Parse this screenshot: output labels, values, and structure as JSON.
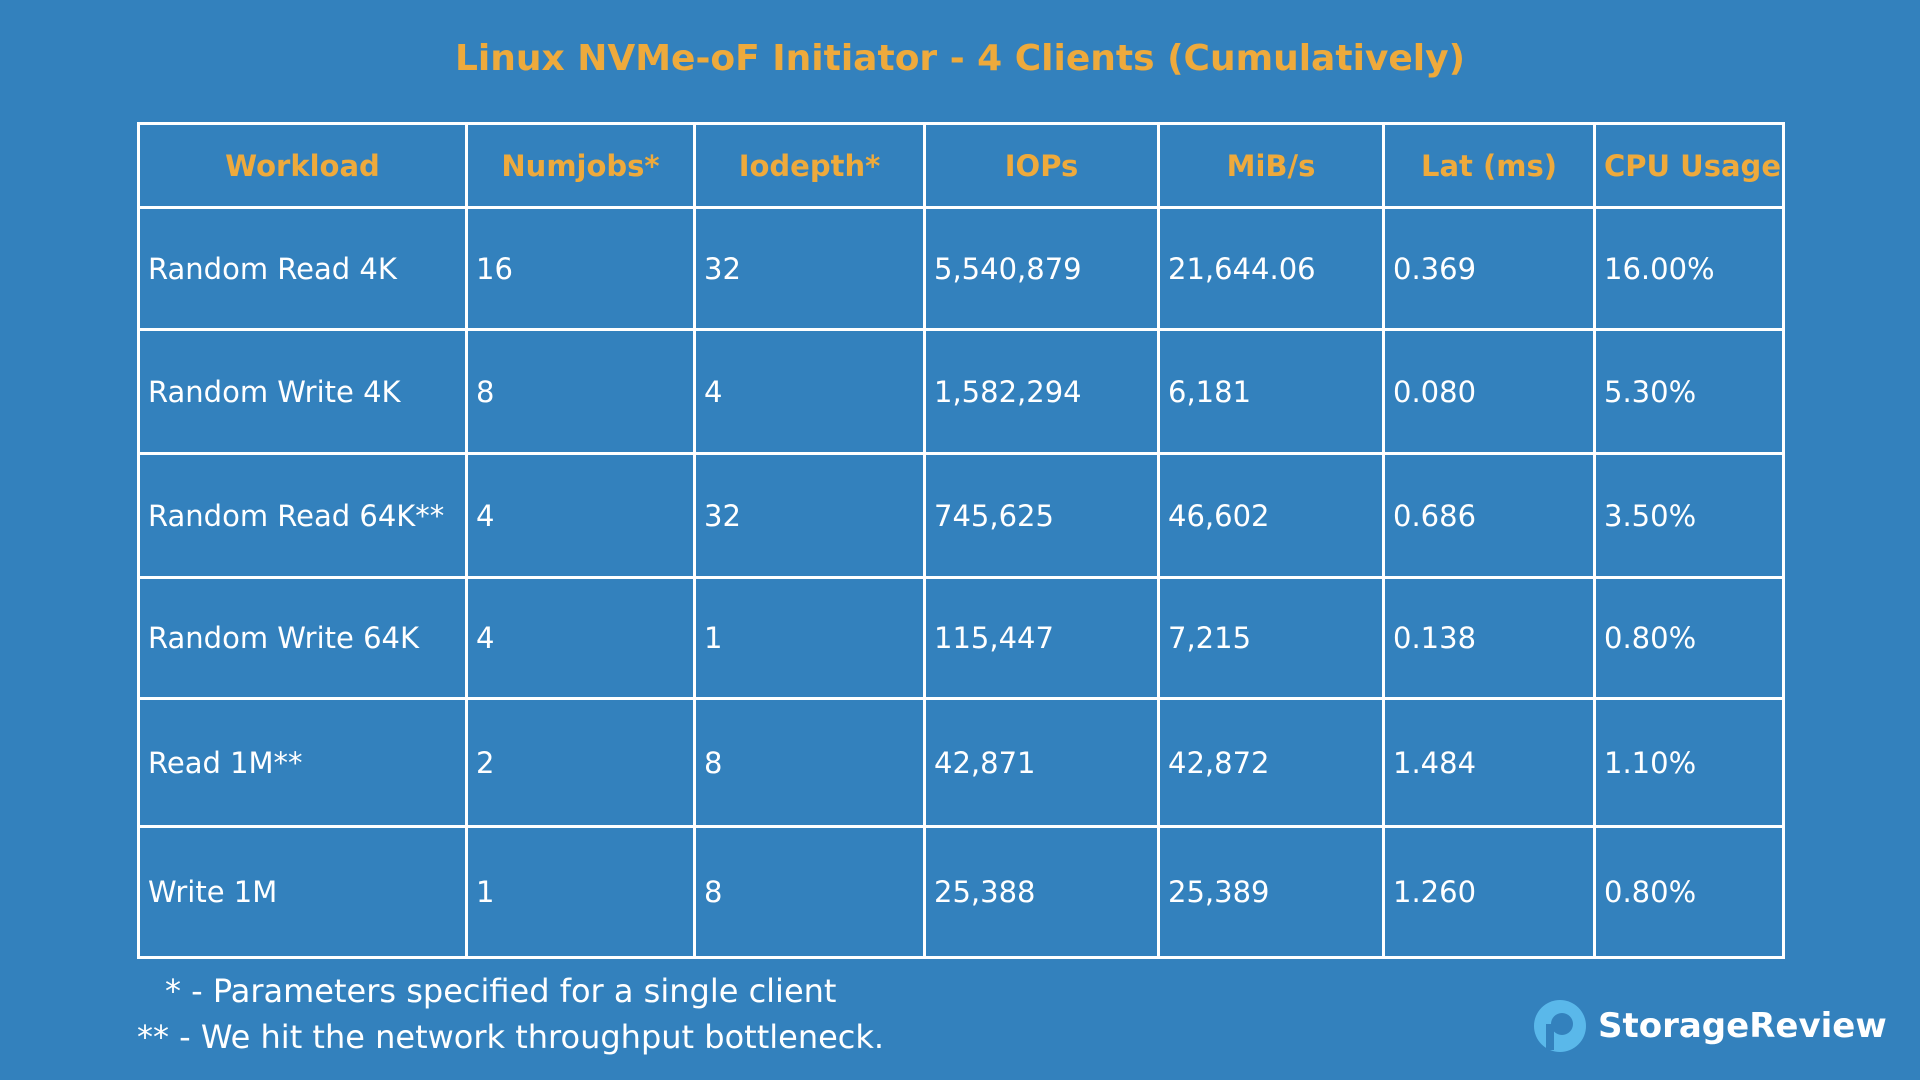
{
  "title": "Linux NVMe-oF Initiator - 4 Clients (Cumulatively)",
  "table": {
    "headers": [
      "Workload",
      "Numjobs*",
      "Iodepth*",
      "IOPs",
      "MiB/s",
      "Lat (ms)",
      "CPU Usage"
    ],
    "rows": [
      [
        "Random Read 4K",
        "16",
        "32",
        "5,540,879",
        "21,644.06",
        "0.369",
        "16.00%"
      ],
      [
        "Random Write 4K",
        "8",
        "4",
        "1,582,294",
        "6,181",
        "0.080",
        "5.30%"
      ],
      [
        "Random Read 64K**",
        "4",
        "32",
        "745,625",
        "46,602",
        "0.686",
        "3.50%"
      ],
      [
        "Random Write 64K",
        "4",
        "1",
        "115,447",
        "7,215",
        "0.138",
        "0.80%"
      ],
      [
        "Read 1M**",
        "2",
        "8",
        "42,871",
        "42,872",
        "1.484",
        "1.10%"
      ],
      [
        "Write 1M",
        "1",
        "8",
        "25,388",
        "25,389",
        "1.260",
        "0.80%"
      ]
    ]
  },
  "footnotes": [
    "* - Parameters specified for a single client",
    "** - We hit the network throughput bottleneck."
  ],
  "logo": "StorageReview"
}
